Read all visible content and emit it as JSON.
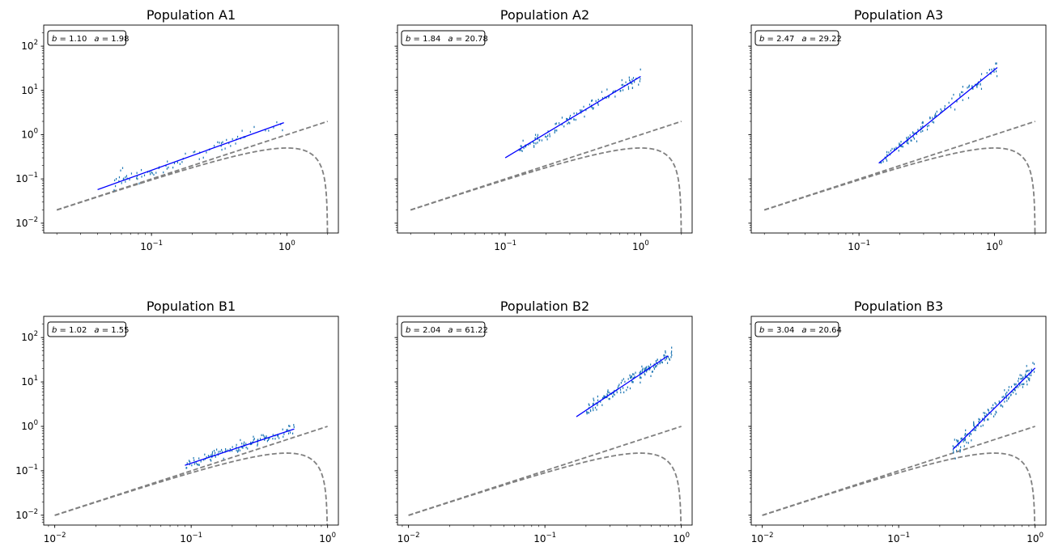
{
  "figure": {
    "background": "#ffffff"
  },
  "chart_data": [
    {
      "type": "scatter",
      "title": "Population A1",
      "xscale": "log",
      "yscale": "log",
      "xlim": [
        0.016,
        2.4
      ],
      "ylim": [
        0.006,
        300
      ],
      "xticks": [
        {
          "label": "10",
          "exp": "−1",
          "value": 0.1
        },
        {
          "label": "10",
          "exp": "0",
          "value": 1
        }
      ],
      "yticks": [
        {
          "label": "10",
          "exp": "−2",
          "value": 0.01
        },
        {
          "label": "10",
          "exp": "−1",
          "value": 0.1
        },
        {
          "label": "10",
          "exp": "0",
          "value": 1
        },
        {
          "label": "10",
          "exp": "1",
          "value": 10
        },
        {
          "label": "10",
          "exp": "2",
          "value": 100
        }
      ],
      "show_ytick_labels": true,
      "annotation": {
        "b_label": "b",
        "b_value": "1.10",
        "a_label": "a",
        "a_value": "1.98"
      },
      "fit": {
        "b": 1.1,
        "a": 1.98,
        "x_range": [
          0.04,
          0.95
        ]
      },
      "scatter": {
        "x_range": [
          0.05,
          0.95
        ],
        "n": 80,
        "noise": 0.08,
        "seed": 11
      },
      "reference_curves": {
        "identity": {
          "x_range": [
            0.02,
            2.0
          ]
        },
        "logistic": {
          "x_range": [
            0.02,
            2.0
          ],
          "max": 2.0
        }
      },
      "colors": {
        "points": "#1f77b4",
        "fit": "#0000ff",
        "reference": "#808080"
      }
    },
    {
      "type": "scatter",
      "title": "Population A2",
      "xscale": "log",
      "yscale": "log",
      "xlim": [
        0.016,
        2.4
      ],
      "ylim": [
        0.006,
        300
      ],
      "xticks": [
        {
          "label": "10",
          "exp": "−1",
          "value": 0.1
        },
        {
          "label": "10",
          "exp": "0",
          "value": 1
        }
      ],
      "yticks": [
        {
          "label": "10",
          "exp": "−2",
          "value": 0.01
        },
        {
          "label": "10",
          "exp": "−1",
          "value": 0.1
        },
        {
          "label": "10",
          "exp": "0",
          "value": 1
        },
        {
          "label": "10",
          "exp": "1",
          "value": 10
        },
        {
          "label": "10",
          "exp": "2",
          "value": 100
        }
      ],
      "show_ytick_labels": false,
      "annotation": {
        "b_label": "b",
        "b_value": "1.84",
        "a_label": "a",
        "a_value": "20.78"
      },
      "fit": {
        "b": 1.84,
        "a": 20.78,
        "x_range": [
          0.1,
          1.0
        ]
      },
      "scatter": {
        "x_range": [
          0.12,
          1.0
        ],
        "n": 120,
        "noise": 0.07,
        "seed": 23
      },
      "reference_curves": {
        "identity": {
          "x_range": [
            0.02,
            2.0
          ]
        },
        "logistic": {
          "x_range": [
            0.02,
            2.0
          ],
          "max": 2.0
        }
      },
      "colors": {
        "points": "#1f77b4",
        "fit": "#0000ff",
        "reference": "#808080"
      }
    },
    {
      "type": "scatter",
      "title": "Population A3",
      "xscale": "log",
      "yscale": "log",
      "xlim": [
        0.016,
        2.4
      ],
      "ylim": [
        0.006,
        300
      ],
      "xticks": [
        {
          "label": "10",
          "exp": "−1",
          "value": 0.1
        },
        {
          "label": "10",
          "exp": "0",
          "value": 1
        }
      ],
      "yticks": [
        {
          "label": "10",
          "exp": "−2",
          "value": 0.01
        },
        {
          "label": "10",
          "exp": "−1",
          "value": 0.1
        },
        {
          "label": "10",
          "exp": "0",
          "value": 1
        },
        {
          "label": "10",
          "exp": "1",
          "value": 10
        },
        {
          "label": "10",
          "exp": "2",
          "value": 100
        }
      ],
      "show_ytick_labels": false,
      "annotation": {
        "b_label": "b",
        "b_value": "2.47",
        "a_label": "a",
        "a_value": "29.22"
      },
      "fit": {
        "b": 2.47,
        "a": 29.22,
        "x_range": [
          0.14,
          1.05
        ]
      },
      "scatter": {
        "x_range": [
          0.14,
          1.05
        ],
        "n": 120,
        "noise": 0.08,
        "seed": 37
      },
      "reference_curves": {
        "identity": {
          "x_range": [
            0.02,
            2.0
          ]
        },
        "logistic": {
          "x_range": [
            0.02,
            2.0
          ],
          "max": 2.0
        }
      },
      "colors": {
        "points": "#1f77b4",
        "fit": "#0000ff",
        "reference": "#808080"
      }
    },
    {
      "type": "scatter",
      "title": "Population B1",
      "xscale": "log",
      "yscale": "log",
      "xlim": [
        0.0083,
        1.2
      ],
      "ylim": [
        0.006,
        300
      ],
      "xticks": [
        {
          "label": "10",
          "exp": "−2",
          "value": 0.01
        },
        {
          "label": "10",
          "exp": "−1",
          "value": 0.1
        },
        {
          "label": "10",
          "exp": "0",
          "value": 1
        }
      ],
      "yticks": [
        {
          "label": "10",
          "exp": "−2",
          "value": 0.01
        },
        {
          "label": "10",
          "exp": "−1",
          "value": 0.1
        },
        {
          "label": "10",
          "exp": "0",
          "value": 1
        },
        {
          "label": "10",
          "exp": "1",
          "value": 10
        },
        {
          "label": "10",
          "exp": "2",
          "value": 100
        }
      ],
      "show_ytick_labels": true,
      "annotation": {
        "b_label": "b",
        "b_value": "1.02",
        "a_label": "a",
        "a_value": "1.55"
      },
      "fit": {
        "b": 1.02,
        "a": 1.55,
        "x_range": [
          0.09,
          0.57
        ]
      },
      "scatter": {
        "x_range": [
          0.09,
          0.57
        ],
        "n": 120,
        "noise": 0.06,
        "seed": 41
      },
      "reference_curves": {
        "identity": {
          "x_range": [
            0.01,
            1.0
          ]
        },
        "logistic": {
          "x_range": [
            0.01,
            1.0
          ],
          "max": 1.0
        }
      },
      "colors": {
        "points": "#1f77b4",
        "fit": "#0000ff",
        "reference": "#808080"
      }
    },
    {
      "type": "scatter",
      "title": "Population B2",
      "xscale": "log",
      "yscale": "log",
      "xlim": [
        0.0083,
        1.2
      ],
      "ylim": [
        0.006,
        300
      ],
      "xticks": [
        {
          "label": "10",
          "exp": "−2",
          "value": 0.01
        },
        {
          "label": "10",
          "exp": "−1",
          "value": 0.1
        },
        {
          "label": "10",
          "exp": "0",
          "value": 1
        }
      ],
      "yticks": [
        {
          "label": "10",
          "exp": "−2",
          "value": 0.01
        },
        {
          "label": "10",
          "exp": "−1",
          "value": 0.1
        },
        {
          "label": "10",
          "exp": "0",
          "value": 1
        },
        {
          "label": "10",
          "exp": "1",
          "value": 10
        },
        {
          "label": "10",
          "exp": "2",
          "value": 100
        }
      ],
      "show_ytick_labels": false,
      "annotation": {
        "b_label": "b",
        "b_value": "2.04",
        "a_label": "a",
        "a_value": "61.22"
      },
      "fit": {
        "b": 2.04,
        "a": 61.22,
        "x_range": [
          0.17,
          0.8
        ]
      },
      "scatter": {
        "x_range": [
          0.2,
          0.85
        ],
        "n": 160,
        "noise": 0.07,
        "seed": 53
      },
      "reference_curves": {
        "identity": {
          "x_range": [
            0.01,
            1.0
          ]
        },
        "logistic": {
          "x_range": [
            0.01,
            1.0
          ],
          "max": 1.0
        }
      },
      "colors": {
        "points": "#1f77b4",
        "fit": "#0000ff",
        "reference": "#808080"
      }
    },
    {
      "type": "scatter",
      "title": "Population B3",
      "xscale": "log",
      "yscale": "log",
      "xlim": [
        0.0083,
        1.2
      ],
      "ylim": [
        0.006,
        300
      ],
      "xticks": [
        {
          "label": "10",
          "exp": "−2",
          "value": 0.01
        },
        {
          "label": "10",
          "exp": "−1",
          "value": 0.1
        },
        {
          "label": "10",
          "exp": "0",
          "value": 1
        }
      ],
      "yticks": [
        {
          "label": "10",
          "exp": "−2",
          "value": 0.01
        },
        {
          "label": "10",
          "exp": "−1",
          "value": 0.1
        },
        {
          "label": "10",
          "exp": "0",
          "value": 1
        },
        {
          "label": "10",
          "exp": "1",
          "value": 10
        },
        {
          "label": "10",
          "exp": "2",
          "value": 100
        }
      ],
      "show_ytick_labels": false,
      "annotation": {
        "b_label": "b",
        "b_value": "3.04",
        "a_label": "a",
        "a_value": "20.64"
      },
      "fit": {
        "b": 3.04,
        "a": 20.64,
        "x_range": [
          0.25,
          1.0
        ]
      },
      "scatter": {
        "x_range": [
          0.25,
          1.0
        ],
        "n": 160,
        "noise": 0.09,
        "seed": 67
      },
      "reference_curves": {
        "identity": {
          "x_range": [
            0.01,
            1.0
          ]
        },
        "logistic": {
          "x_range": [
            0.01,
            1.0
          ],
          "max": 1.0
        }
      },
      "colors": {
        "points": "#1f77b4",
        "fit": "#0000ff",
        "reference": "#808080"
      }
    }
  ]
}
